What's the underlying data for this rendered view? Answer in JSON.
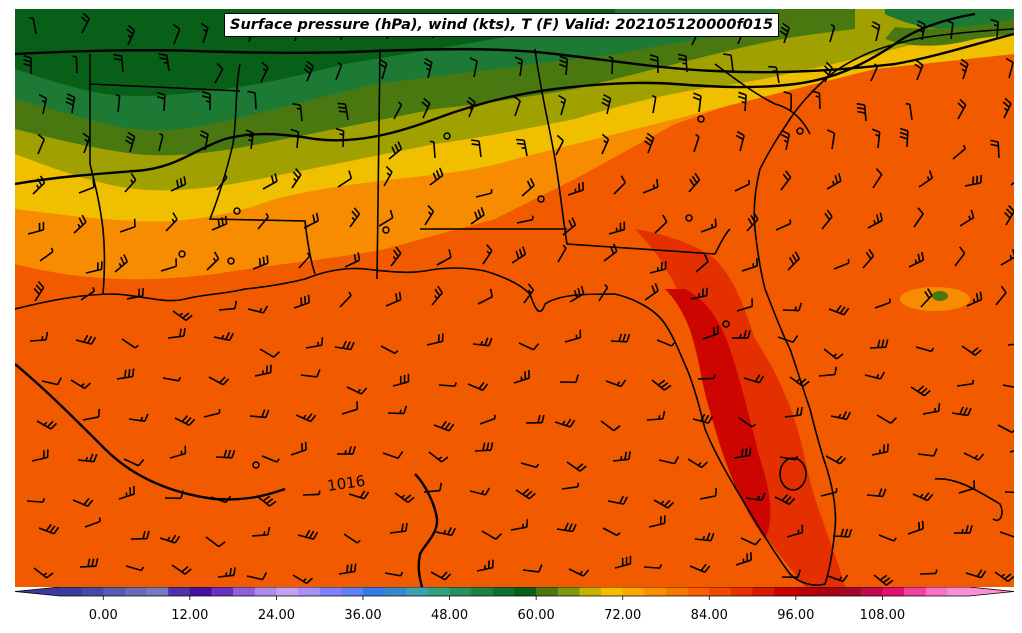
{
  "title": "Surface pressure (hPa), wind (kts), T (F) Valid: 202105120000f015",
  "isobar_label": "1016",
  "colorbar": {
    "min": -6,
    "max": 120,
    "step": 3,
    "tick_values": [
      0,
      12,
      24,
      36,
      48,
      60,
      72,
      84,
      96,
      108
    ],
    "tick_labels": [
      "0.00",
      "12.00",
      "24.00",
      "36.00",
      "48.00",
      "60.00",
      "72.00",
      "84.00",
      "96.00",
      "108.00"
    ],
    "colors": [
      "#3a3a9c",
      "#4848a8",
      "#5a5aac",
      "#6a6ab4",
      "#7878bc",
      "#5030a8",
      "#4810a0",
      "#6a30c0",
      "#9060d8",
      "#b088e8",
      "#c8a0f0",
      "#a890f8",
      "#8080f8",
      "#6080f0",
      "#3878e8",
      "#3888c8",
      "#40a0b0",
      "#30a080",
      "#289060",
      "#208040",
      "#107030",
      "#086018",
      "#4a7810",
      "#809810",
      "#c8b000",
      "#f0c000",
      "#f8a800",
      "#f89000",
      "#f87800",
      "#f86000",
      "#f04800",
      "#e83000",
      "#d81800",
      "#c80000",
      "#b80008",
      "#a80010",
      "#a00828",
      "#c00850",
      "#e01070",
      "#f040a0",
      "#f870c8",
      "#f890d8"
    ]
  },
  "legend_colors": {
    "dark_green": "#086018",
    "green": "#208040",
    "olive": "#4a7810",
    "yellow_olive": "#a0a000",
    "yellow": "#f0c000",
    "orange_light": "#f8a800",
    "orange": "#f88c00",
    "orange_dark": "#f86000",
    "red_orange": "#f04800",
    "red": "#e02000",
    "deep_red": "#d00000"
  }
}
